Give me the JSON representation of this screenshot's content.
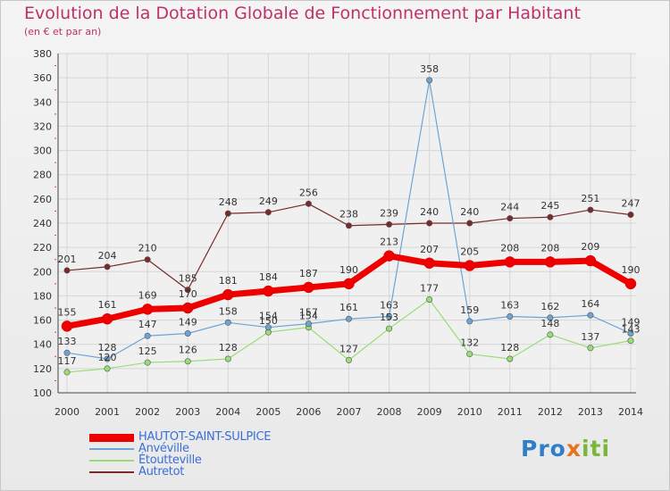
{
  "title": "Evolution de la Dotation Globale de Fonctionnement par Habitant",
  "subtitle": "(en € et par an)",
  "logo": {
    "part1": "Pro",
    "part2": "x",
    "part3": "iti"
  },
  "chart_data": {
    "type": "line",
    "x": [
      "2000",
      "2001",
      "2002",
      "2003",
      "2004",
      "2005",
      "2006",
      "2007",
      "2008",
      "2009",
      "2010",
      "2011",
      "2012",
      "2013",
      "2014"
    ],
    "ylim": [
      100,
      380
    ],
    "yticks": [
      100,
      120,
      140,
      160,
      180,
      200,
      220,
      240,
      260,
      280,
      300,
      320,
      340,
      360,
      380
    ],
    "grid": true,
    "legend_position": "bottom-left",
    "series": [
      {
        "name": "HAUTOT-SAINT-SULPICE",
        "color": "#ee0000",
        "values": [
          155,
          161,
          169,
          170,
          181,
          184,
          187,
          190,
          213,
          207,
          205,
          208,
          208,
          209,
          190
        ]
      },
      {
        "name": "Anvéville",
        "color": "#6ea4d4",
        "values": [
          133,
          128,
          147,
          149,
          158,
          154,
          157,
          161,
          163,
          358,
          159,
          163,
          162,
          164,
          149
        ]
      },
      {
        "name": "Étoutteville",
        "color": "#99dd77",
        "values": [
          117,
          120,
          125,
          126,
          128,
          150,
          154,
          127,
          153,
          177,
          132,
          128,
          148,
          137,
          143
        ]
      },
      {
        "name": "Autretot",
        "color": "#7a2a2a",
        "values": [
          201,
          204,
          210,
          185,
          248,
          249,
          256,
          238,
          239,
          240,
          240,
          244,
          245,
          251,
          247
        ]
      }
    ]
  }
}
